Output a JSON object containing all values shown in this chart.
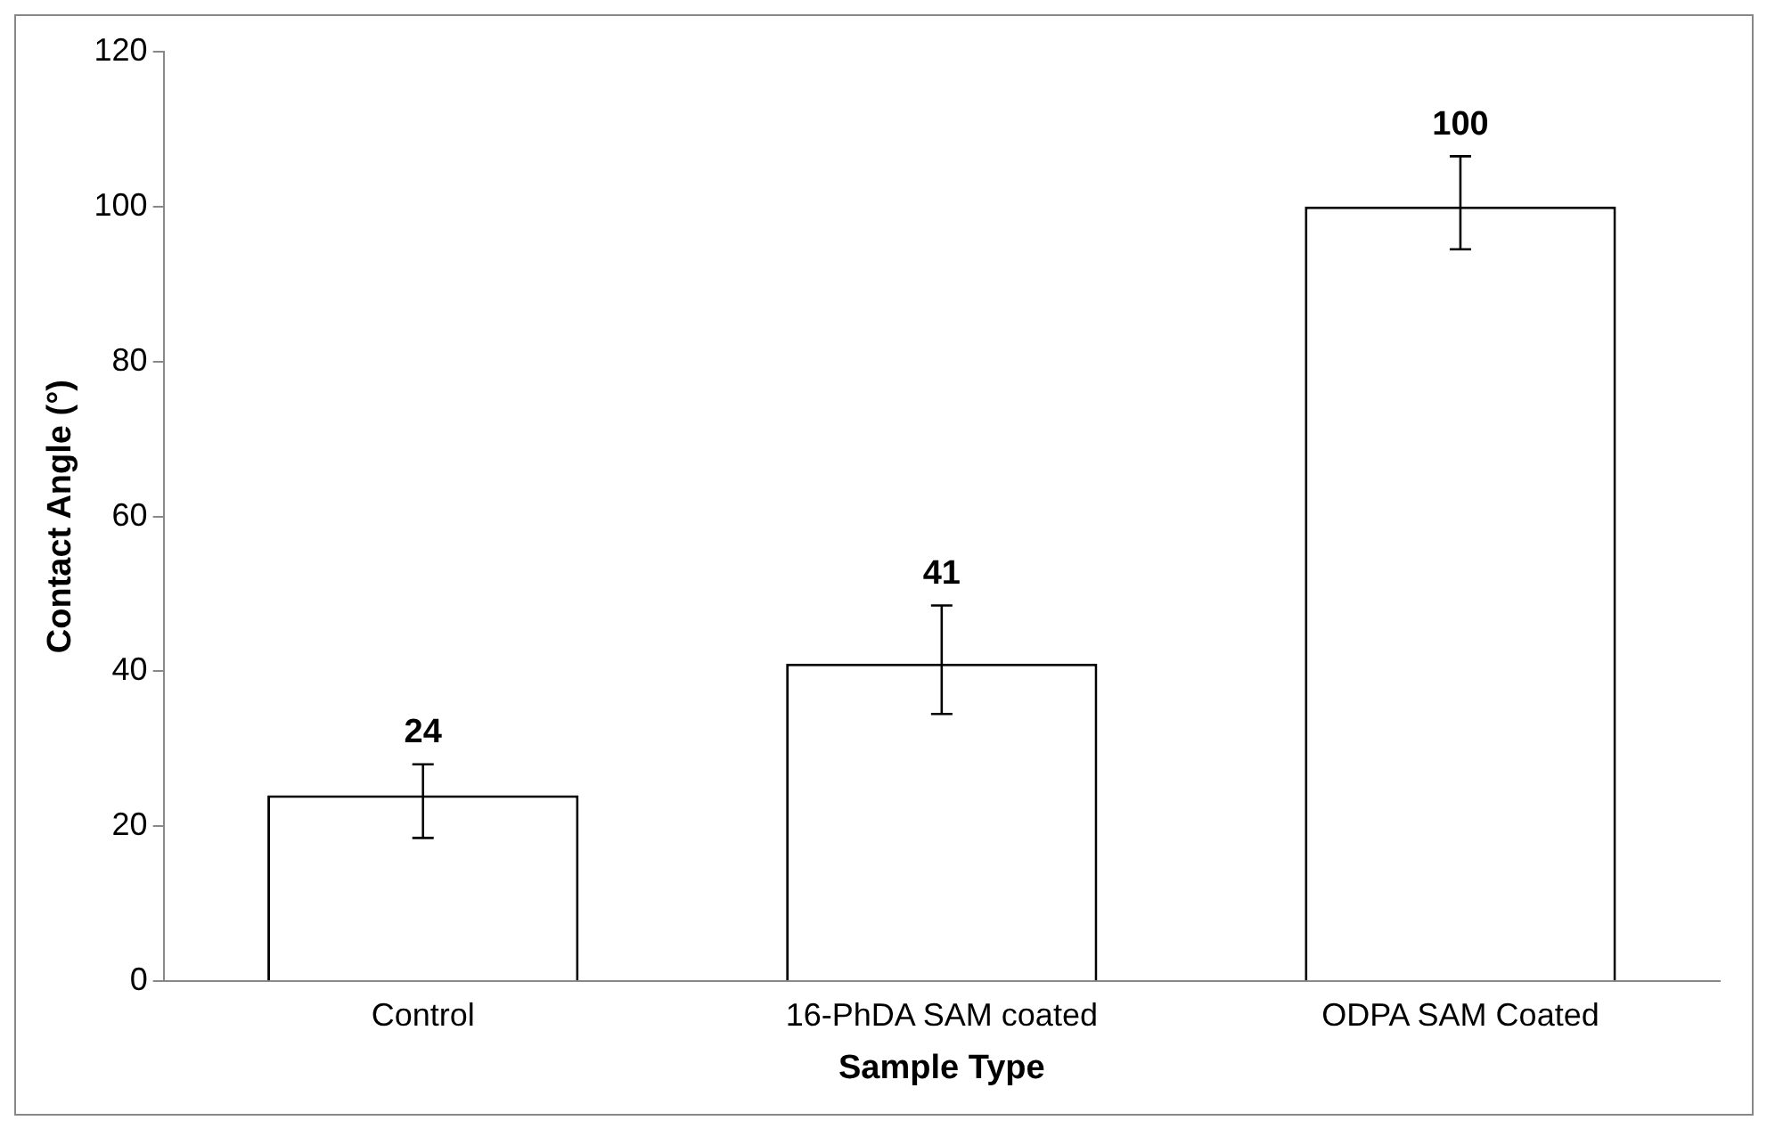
{
  "chart_data": {
    "type": "bar",
    "xlabel": "Sample Type",
    "ylabel": "Contact Angle (°)",
    "categories": [
      "Control",
      "16-PhDA SAM coated",
      "ODPA SAM Coated"
    ],
    "values": [
      24,
      41,
      100
    ],
    "color": "#ffffff",
    "errors": [
      [
        18.5,
        28
      ],
      [
        34.5,
        48.5
      ],
      [
        94.5,
        106.5
      ]
    ],
    "ylim": [
      0,
      120
    ],
    "yticks": [
      0,
      20,
      40,
      60,
      80,
      100,
      120
    ],
    "data_labels": true,
    "grid": false,
    "legend": false
  }
}
